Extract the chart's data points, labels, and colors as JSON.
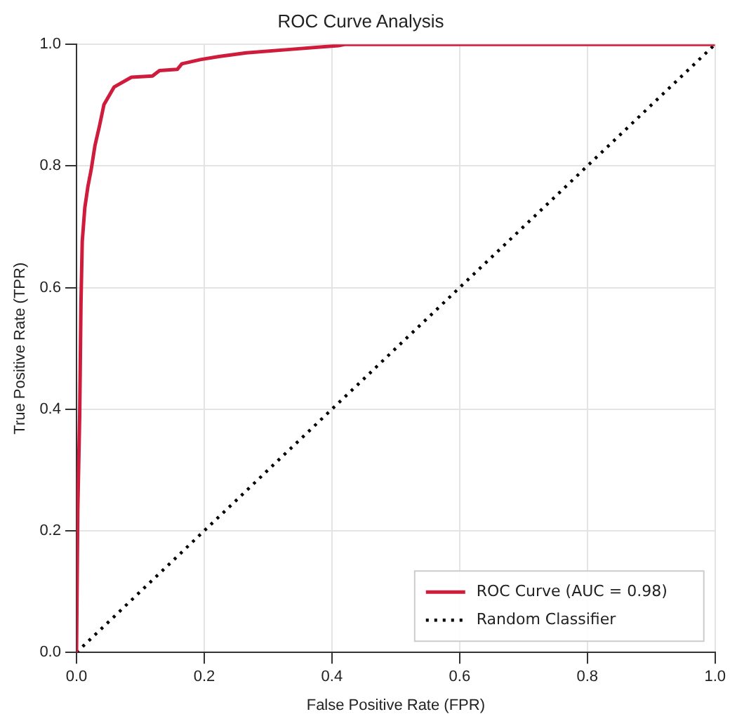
{
  "chart_data": {
    "type": "line",
    "title": "ROC Curve Analysis",
    "xlabel": "False Positive Rate (FPR)",
    "ylabel": "True Positive Rate (TPR)",
    "series": [
      {
        "name": "ROC Curve (AUC = 0.98)",
        "color": "#d01c3c",
        "line_style": "solid",
        "x": [
          0,
          0.002,
          0.005,
          0.007,
          0.009,
          0.013,
          0.018,
          0.023,
          0.029,
          0.036,
          0.043,
          0.059,
          0.086,
          0.119,
          0.13,
          0.158,
          0.165,
          0.194,
          0.223,
          0.266,
          0.338,
          0.41,
          0.42,
          1
        ],
        "values": [
          0,
          0.233,
          0.39,
          0.573,
          0.676,
          0.731,
          0.767,
          0.794,
          0.834,
          0.866,
          0.901,
          0.93,
          0.946,
          0.948,
          0.957,
          0.959,
          0.968,
          0.975,
          0.98,
          0.986,
          0.992,
          0.998,
          1,
          1
        ]
      },
      {
        "name": "Random Classifier",
        "color": "#000000",
        "line_style": "dotted",
        "x": [
          0,
          1
        ],
        "values": [
          0,
          1
        ]
      }
    ],
    "xlim": [
      0,
      1
    ],
    "ylim": [
      0,
      1
    ],
    "xticks": [
      {
        "value": 0,
        "label": "0.0"
      },
      0.2,
      0.4,
      0.6,
      0.8,
      {
        "value": 1,
        "label": "1.0"
      }
    ],
    "yticks": [
      {
        "value": 0,
        "label": "0.0"
      },
      0.2,
      0.4,
      0.6,
      0.8,
      {
        "value": 1,
        "label": "1.0"
      }
    ],
    "grid": true,
    "legend": "bottom right",
    "marker": "none"
  }
}
